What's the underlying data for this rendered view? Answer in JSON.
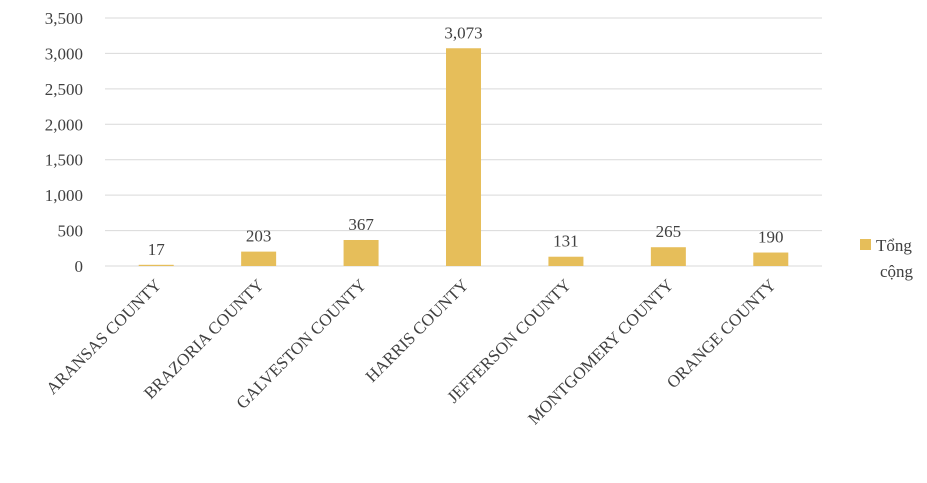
{
  "chart_data": {
    "type": "bar",
    "title": "",
    "xlabel": "",
    "ylabel": "",
    "categories": [
      "ARANSAS COUNTY",
      "BRAZORIA COUNTY",
      "GALVESTON COUNTY",
      "HARRIS COUNTY",
      "JEFFERSON COUNTY",
      "MONTGOMERY COUNTY",
      "ORANGE COUNTY"
    ],
    "series": [
      {
        "name": "Tổng cộng",
        "values": [
          17,
          203,
          367,
          3073,
          131,
          265,
          190
        ],
        "labels": [
          "17",
          "203",
          "367",
          "3,073",
          "131",
          "265",
          "190"
        ]
      }
    ],
    "ylim": [
      0,
      3500
    ],
    "yticks": [
      0,
      500,
      1000,
      1500,
      2000,
      2500,
      3000,
      3500
    ],
    "ytick_labels": [
      "0",
      "500",
      "1,000",
      "1,500",
      "2,000",
      "2,500",
      "3,000",
      "3,500"
    ],
    "grid": true,
    "legend_position": "right",
    "legend_lines": [
      "Tổng",
      "cộng"
    ],
    "colors": {
      "bar": "#E6BE5A",
      "grid": "#D9D9D9",
      "text": "#404040"
    }
  }
}
